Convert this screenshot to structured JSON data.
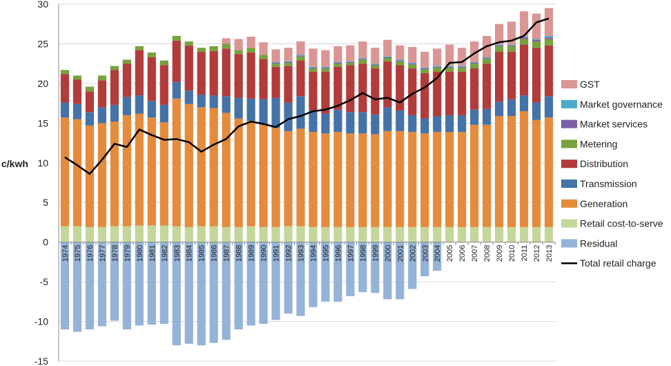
{
  "chart_data": {
    "type": "bar",
    "stacked": true,
    "ylabel": "c/kwh",
    "ylim": [
      -15,
      30
    ],
    "yticks": [
      -15,
      -10,
      -5,
      0,
      5,
      10,
      15,
      20,
      25,
      30
    ],
    "categories": [
      "1974",
      "1975",
      "1976",
      "1977",
      "1978",
      "1979",
      "1980",
      "1981",
      "1982",
      "1983",
      "1984",
      "1985",
      "1986",
      "1987",
      "1988",
      "1989",
      "1990",
      "1991",
      "1992",
      "1993",
      "1994",
      "1995",
      "1996",
      "1997",
      "1998",
      "1999",
      "2000",
      "2001",
      "2002",
      "2003",
      "2004",
      "2005",
      "2006",
      "2007",
      "2008",
      "2009",
      "2010",
      "2011",
      "2012",
      "2013"
    ],
    "legend": [
      "GST",
      "Market governance",
      "Market services",
      "Metering",
      "Distribution",
      "Transmission",
      "Generation",
      "Retail cost-to-serve",
      "Residual",
      "Total retail charge"
    ],
    "legend_position": "right",
    "series": [
      {
        "name": "Residual",
        "color": "#95b3d7",
        "values": [
          -11.0,
          -11.3,
          -11.0,
          -10.6,
          -9.9,
          -11.0,
          -10.5,
          -10.4,
          -10.3,
          -13.0,
          -12.8,
          -13.0,
          -12.7,
          -12.3,
          -11.0,
          -10.5,
          -10.3,
          -9.8,
          -9.0,
          -9.3,
          -8.2,
          -7.5,
          -7.5,
          -6.8,
          -6.3,
          -6.4,
          -7.2,
          -7.2,
          -5.9,
          -4.3,
          -3.6,
          0,
          0,
          0,
          0,
          0,
          0,
          0,
          0,
          0
        ]
      },
      {
        "name": "Retail cost-to-serve",
        "color": "#c4d79b",
        "values": [
          2.0,
          2.0,
          1.9,
          1.9,
          2.0,
          2.0,
          2.1,
          2.1,
          2.1,
          2.0,
          1.9,
          2.0,
          2.0,
          1.9,
          1.9,
          2.0,
          1.9,
          1.9,
          2.0,
          2.0,
          1.9,
          1.9,
          1.9,
          1.9,
          1.9,
          1.9,
          1.9,
          1.9,
          1.9,
          1.9,
          1.9,
          1.9,
          1.9,
          1.9,
          1.9,
          1.9,
          1.9,
          1.9,
          1.9,
          1.9
        ]
      },
      {
        "name": "Generation",
        "color": "#e48b3d",
        "values": [
          13.7,
          13.5,
          12.8,
          13.1,
          13.2,
          14.0,
          14.1,
          13.6,
          13.0,
          16.1,
          15.5,
          15.0,
          14.9,
          14.4,
          13.7,
          13.3,
          12.9,
          12.5,
          12.0,
          12.3,
          12.0,
          11.8,
          12.0,
          11.8,
          11.8,
          11.7,
          12.1,
          12.1,
          12.0,
          11.8,
          12.0,
          12.0,
          12.0,
          12.9,
          12.9,
          14.0,
          14.0,
          14.6,
          13.5,
          13.8
        ]
      },
      {
        "name": "Transmission",
        "color": "#4572a7",
        "values": [
          1.9,
          1.9,
          1.7,
          2.0,
          2.1,
          2.3,
          2.3,
          2.1,
          2.2,
          2.1,
          1.7,
          1.6,
          1.6,
          2.1,
          2.6,
          2.8,
          3.2,
          3.8,
          3.6,
          4.1,
          2.7,
          2.5,
          2.8,
          2.7,
          2.7,
          2.5,
          3.0,
          2.6,
          2.1,
          1.9,
          2.0,
          2.1,
          2.1,
          1.9,
          2.0,
          1.8,
          2.1,
          2.0,
          2.2,
          2.7
        ]
      },
      {
        "name": "Distribution",
        "color": "#b23b3b",
        "values": [
          3.6,
          3.1,
          2.6,
          3.4,
          4.4,
          4.2,
          5.7,
          5.5,
          5.0,
          5.2,
          5.7,
          5.4,
          5.6,
          6.0,
          5.5,
          5.8,
          5.1,
          3.9,
          4.6,
          4.5,
          4.9,
          5.3,
          5.4,
          5.9,
          6.1,
          5.8,
          5.8,
          5.7,
          5.9,
          5.7,
          5.6,
          5.5,
          5.5,
          5.2,
          5.7,
          6.3,
          6.0,
          6.4,
          6.9,
          6.4
        ]
      },
      {
        "name": "Metering",
        "color": "#77a23c",
        "values": [
          0.5,
          0.5,
          0.6,
          0.6,
          0.5,
          0.5,
          0.5,
          0.6,
          0.6,
          0.6,
          0.5,
          0.5,
          0.6,
          0.6,
          0.5,
          0.6,
          0.5,
          0.4,
          0.4,
          0.5,
          0.4,
          0.4,
          0.4,
          0.3,
          0.5,
          0.4,
          0.4,
          0.5,
          0.5,
          0.5,
          0.5,
          0.5,
          0.5,
          0.6,
          0.6,
          0.7,
          0.7,
          0.7,
          0.8,
          0.8
        ]
      },
      {
        "name": "Market services",
        "color": "#7b5ea7",
        "values": [
          0,
          0,
          0,
          0,
          0,
          0,
          0,
          0,
          0,
          0,
          0,
          0,
          0,
          0,
          0,
          0,
          0,
          0.1,
          0.1,
          0.1,
          0.1,
          0.1,
          0.1,
          0.1,
          0.1,
          0.1,
          0.1,
          0.1,
          0.1,
          0.1,
          0.1,
          0.1,
          0.1,
          0.1,
          0.1,
          0.1,
          0.1,
          0.2,
          0.2,
          0.2
        ]
      },
      {
        "name": "Market governance",
        "color": "#4bacc6",
        "values": [
          0,
          0,
          0,
          0,
          0,
          0,
          0,
          0,
          0,
          0,
          0,
          0,
          0,
          0,
          0,
          0,
          0,
          0.1,
          0.1,
          0.1,
          0.1,
          0.1,
          0.1,
          0.1,
          0.1,
          0.1,
          0.1,
          0.1,
          0.1,
          0.1,
          0.1,
          0.1,
          0.1,
          0.1,
          0.1,
          0.1,
          0.1,
          0.1,
          0.1,
          0.2
        ]
      },
      {
        "name": "GST",
        "color": "#da9694",
        "values": [
          0,
          0,
          0,
          0,
          0,
          0,
          0,
          0,
          0,
          0,
          0,
          0,
          0,
          0.7,
          1.4,
          1.4,
          1.6,
          1.6,
          1.7,
          1.7,
          2.3,
          2.1,
          2.0,
          2.0,
          2.1,
          2.0,
          2.1,
          1.8,
          2.0,
          2.0,
          2.2,
          2.7,
          2.3,
          2.6,
          2.7,
          2.6,
          2.9,
          3.2,
          3.2,
          3.5
        ]
      }
    ],
    "line": {
      "name": "Total retail charge",
      "color": "#000000",
      "values": [
        10.7,
        9.7,
        8.6,
        10.4,
        12.4,
        12.0,
        14.2,
        13.5,
        12.9,
        13.0,
        12.6,
        11.4,
        12.3,
        13.0,
        14.6,
        15.2,
        14.9,
        14.5,
        15.5,
        15.9,
        16.5,
        16.7,
        17.2,
        17.9,
        18.8,
        18.0,
        18.2,
        17.6,
        18.7,
        19.5,
        20.7,
        22.6,
        22.7,
        23.8,
        24.7,
        25.2,
        25.4,
        26.0,
        27.7,
        28.2
      ]
    }
  }
}
